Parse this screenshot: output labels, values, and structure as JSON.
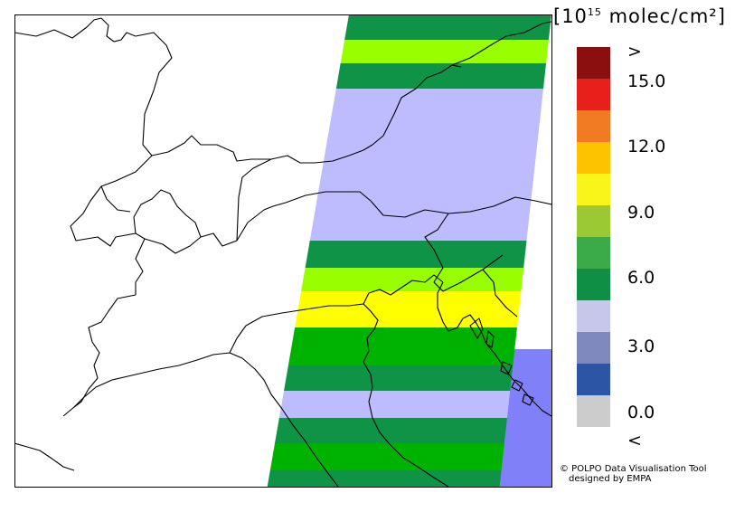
{
  "legend": {
    "unit_prefix": "[10",
    "unit_exponent": "15",
    "unit_suffix": " molec/cm²]",
    "ticks": [
      ">",
      "15.0",
      "12.0",
      "9.0",
      "6.0",
      "3.0",
      "0.0",
      "<"
    ],
    "colors": [
      "#8b0f0f",
      "#e8201c",
      "#f07b22",
      "#fdc300",
      "#f9f41a",
      "#9bc933",
      "#3aab48",
      "#0f8f45",
      "#c7c7ea",
      "#7f89bd",
      "#2c55a6",
      "#cccccc"
    ]
  },
  "map": {
    "band_colors": {
      "dark_green": "#0f9447",
      "green": "#00b200",
      "lime": "#99ff00",
      "yellow": "#ffff00",
      "lavender": "#bcbcff",
      "blue": "#8080f8"
    },
    "swath_bands": [
      "dark_green",
      "lime",
      "dark_green",
      "lavender",
      "dark_green",
      "lime",
      "yellow",
      "green",
      "dark_green",
      "lavender",
      "dark_green",
      "green",
      "dark_green"
    ],
    "adjacent_swath_color": "blue"
  },
  "credits": {
    "line1": "© POLPO Data Visualisation Tool",
    "line2": "designed by EMPA"
  }
}
